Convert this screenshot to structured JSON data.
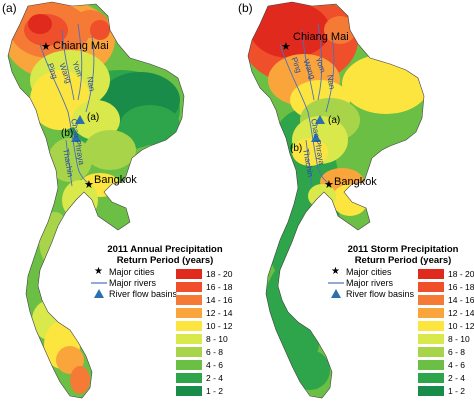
{
  "panels": [
    {
      "label": "(a)",
      "legend_title_line1": "2011 Annual Precipitation",
      "legend_title_line2": "Return Period (years)"
    },
    {
      "label": "(b)",
      "legend_title_line1": "2011 Storm Precipitation",
      "legend_title_line2": "Return Period (years)"
    }
  ],
  "cities": {
    "north": "Chiang Mai",
    "south": "Bangkok"
  },
  "basins": {
    "upper": "(a)",
    "lower": "(b)"
  },
  "rivers": [
    "Ping",
    "Wang",
    "Yom",
    "Nan",
    "Chao Phraya",
    "Thachin"
  ],
  "legend_keys": {
    "cities": "Major cities",
    "rivers": "Major rivers",
    "basins": "River flow basins"
  },
  "legend_ranges": [
    {
      "label": "18 - 20",
      "color": "#e02a1e"
    },
    {
      "label": "16 - 18",
      "color": "#ef4f2a"
    },
    {
      "label": "14 - 16",
      "color": "#f47a35"
    },
    {
      "label": "12 - 14",
      "color": "#f9a53c"
    },
    {
      "label": "10 - 12",
      "color": "#fde53f"
    },
    {
      "label": "8 - 10",
      "color": "#d9e84a"
    },
    {
      "label": "6 - 8",
      "color": "#a8d44a"
    },
    {
      "label": "4 - 6",
      "color": "#6cbf45"
    },
    {
      "label": "2 - 4",
      "color": "#2ea54a"
    },
    {
      "label": "1 - 2",
      "color": "#1a8c4a"
    }
  ],
  "colors": {
    "river": "#4a70c0",
    "basin_marker": "#2a6fb0"
  }
}
